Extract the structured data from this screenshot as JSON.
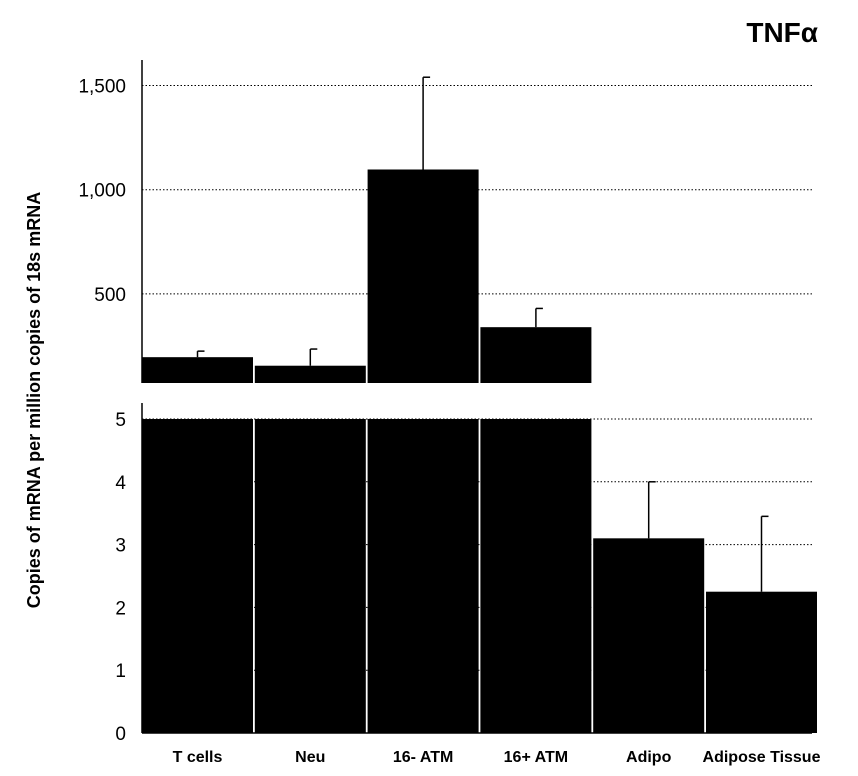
{
  "chart_data": {
    "type": "bar",
    "title": "TNFα",
    "ylabel": "Copies of mRNA per million copies of 18s mRNA",
    "xlabel": "",
    "categories": [
      "T cells",
      "Neu",
      "16- ATM",
      "16+ ATM",
      "Adipo",
      "Adipose Tissue"
    ],
    "broken_axis": true,
    "upper_panel": {
      "ylim": [
        0,
        1500
      ],
      "yticks": [
        500,
        1000,
        1500
      ],
      "ytick_labels": [
        "500",
        "1,000",
        "1,500"
      ],
      "values": [
        196,
        155,
        1097,
        340,
        null,
        null
      ],
      "error_upper": [
        225,
        235,
        1540,
        430,
        null,
        null
      ]
    },
    "lower_panel": {
      "ylim": [
        0,
        5
      ],
      "yticks": [
        0,
        1,
        2,
        3,
        4,
        5
      ],
      "ytick_labels": [
        "0",
        "1",
        "2",
        "3",
        "4",
        "5"
      ],
      "values": [
        5,
        5,
        5,
        5,
        3.1,
        2.25
      ],
      "error_upper": [
        null,
        null,
        null,
        null,
        4.0,
        3.45
      ]
    },
    "grid": "horizontal dotted",
    "bar_color": "#000000"
  }
}
